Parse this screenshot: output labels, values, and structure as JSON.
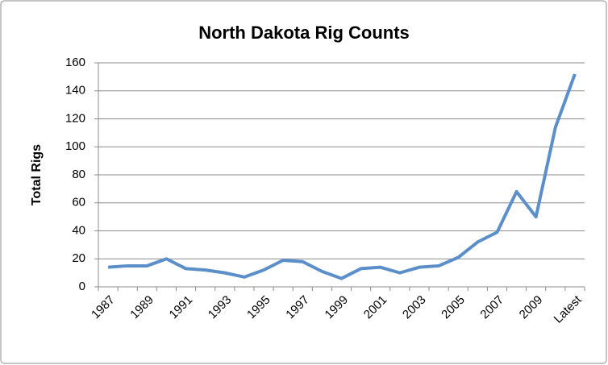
{
  "chart_data": {
    "type": "line",
    "title": "North Dakota Rig Counts",
    "y_label": "Total Rigs",
    "categories": [
      "1987",
      null,
      "1989",
      null,
      "1991",
      null,
      "1993",
      null,
      "1995",
      null,
      "1997",
      null,
      "1999",
      null,
      "2001",
      null,
      "2003",
      null,
      "2005",
      null,
      "2007",
      null,
      "2009",
      null,
      "Latest"
    ],
    "series": [
      {
        "name": "Total Rigs",
        "color": "#5b8fc9",
        "values": [
          14,
          15,
          15,
          20,
          13,
          12,
          10,
          7,
          12,
          19,
          18,
          11,
          6,
          13,
          14,
          10,
          14,
          15,
          21,
          32,
          39,
          68,
          50,
          114,
          152
        ]
      }
    ],
    "ylim": [
      0,
      160
    ],
    "yticks": [
      0,
      20,
      40,
      60,
      80,
      100,
      120,
      140,
      160
    ],
    "grid": true
  }
}
